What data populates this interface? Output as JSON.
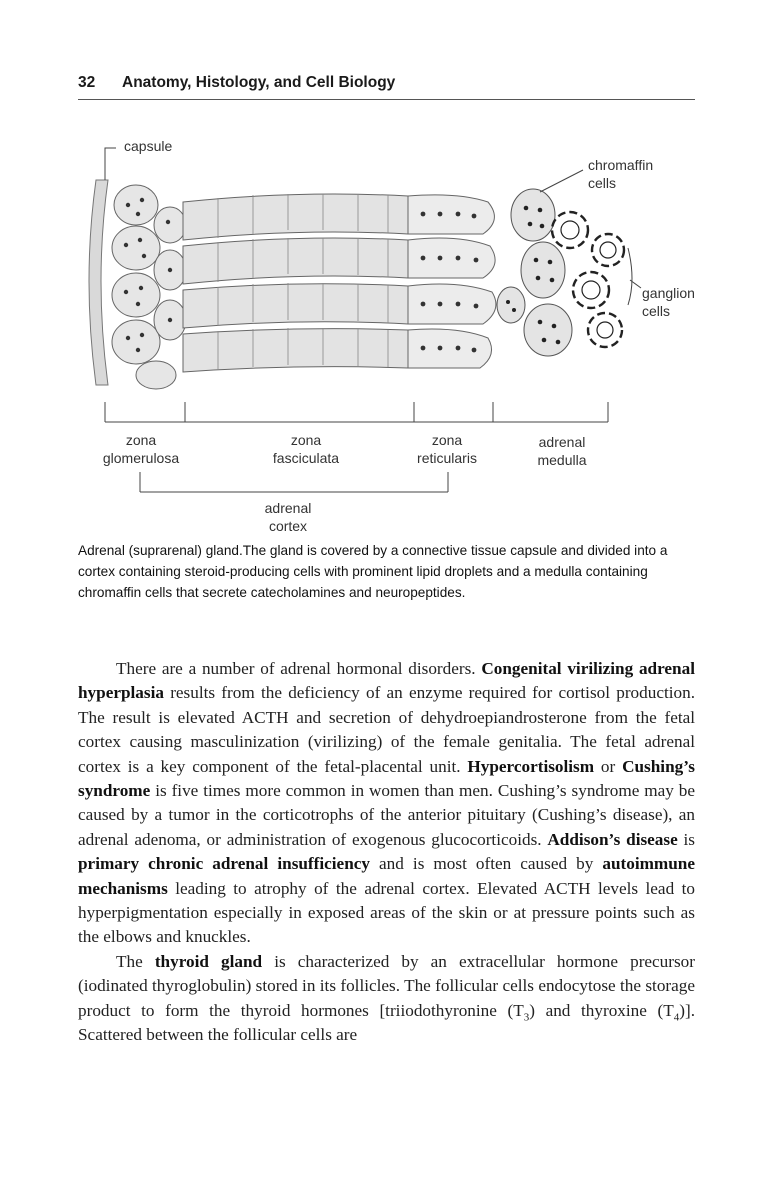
{
  "header": {
    "page_number": "32",
    "running_title": "Anatomy, Histology, and Cell Biology"
  },
  "figure": {
    "labels": {
      "capsule": "capsule",
      "chromaffin_1": "chromaffin",
      "chromaffin_2": "cells",
      "ganglion_1": "ganglion",
      "ganglion_2": "cells",
      "zg_1": "zona",
      "zg_2": "glomerulosa",
      "zf_1": "zona",
      "zf_2": "fasciculata",
      "zr_1": "zona",
      "zr_2": "reticularis",
      "am_1": "adrenal",
      "am_2": "medulla",
      "ac_1": "adrenal",
      "ac_2": "cortex"
    }
  },
  "caption": "Adrenal (suprarenal) gland.The gland is covered by a connective tissue capsule and divided into a cortex containing steroid-producing cells with prominent lipid droplets and a medulla containing chromaffin cells that secrete catecholamines and neuropeptides.",
  "body": {
    "p1": [
      {
        "t": "There are a number of adrenal hormonal disorders. "
      },
      {
        "t": "Congenital virilizing adrenal hyperplasia",
        "b": true
      },
      {
        "t": " results from the deficiency of an enzyme required for cortisol production. The result is elevated ACTH and secretion of dehydroepiandrosterone from the fetal cortex causing masculinization (virilizing) of the female genitalia. The fetal adrenal cortex is a key component of the fetal-placental unit. "
      },
      {
        "t": "Hypercortisolism",
        "b": true
      },
      {
        "t": " or "
      },
      {
        "t": "Cushing’s syndrome",
        "b": true
      },
      {
        "t": " is five times more common in women than men. Cushing’s syndrome may be caused by a tumor in the corticotrophs of the anterior pituitary (Cushing’s disease), an adrenal adenoma, or administration of exogenous glucocorticoids. "
      },
      {
        "t": "Addison’s disease",
        "b": true
      },
      {
        "t": " is "
      },
      {
        "t": "primary chronic adrenal insufficiency",
        "b": true
      },
      {
        "t": " and is most often caused by "
      },
      {
        "t": "autoimmune mechanisms",
        "b": true
      },
      {
        "t": " leading to atrophy of the adrenal cortex. Elevated ACTH levels lead to hyperpigmentation especially in exposed areas of the skin or at pressure points such as the elbows and knuckles."
      }
    ],
    "p2": [
      {
        "t": "The "
      },
      {
        "t": "thyroid gland",
        "b": true
      },
      {
        "t": " is characterized by an extracellular hormone precursor (iodinated thyroglobulin) stored in its follicles. The follicular cells endocytose the storage product to form the thyroid hormones [triiodothyronine (T"
      },
      {
        "t": "3",
        "sub": true
      },
      {
        "t": ") and thyroxine (T"
      },
      {
        "t": "4",
        "sub": true
      },
      {
        "t": ")]. Scattered between the follicular cells are"
      }
    ]
  }
}
